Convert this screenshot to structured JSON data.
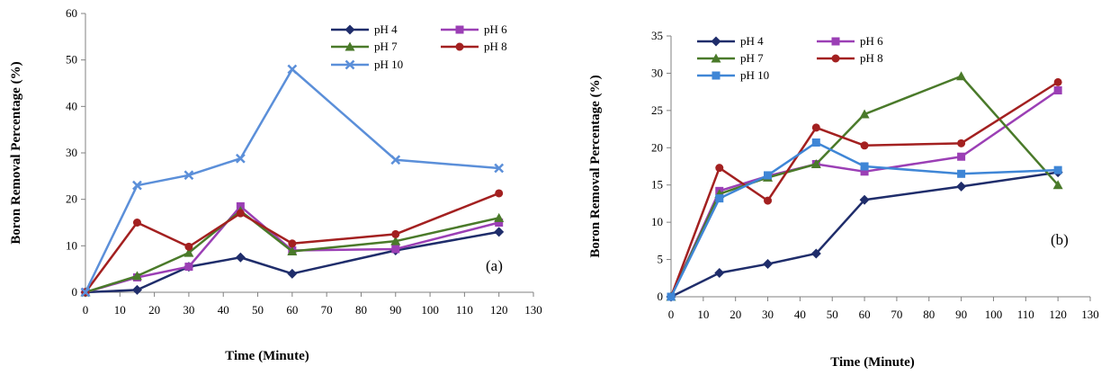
{
  "chart_data": [
    {
      "type": "line",
      "panel_label": "(a)",
      "xlabel": "Time (Minute)",
      "ylabel": "Boron Removal Percentage (%)",
      "xlim": [
        0,
        130
      ],
      "ylim": [
        0,
        60
      ],
      "xticks": [
        0,
        10,
        20,
        30,
        40,
        50,
        60,
        70,
        80,
        90,
        100,
        110,
        120,
        130
      ],
      "yticks": [
        0,
        10,
        20,
        30,
        40,
        50,
        60
      ],
      "grid": false,
      "legend_position": "top-right",
      "x": [
        0,
        15,
        30,
        45,
        60,
        90,
        120
      ],
      "series": [
        {
          "name": "pH 4",
          "color": "#1f2d6b",
          "marker": "diamond",
          "values": [
            0,
            0.5,
            5.5,
            7.5,
            4,
            9,
            13
          ]
        },
        {
          "name": "pH 6",
          "color": "#9b3fb5",
          "marker": "square",
          "values": [
            0,
            3.2,
            5.5,
            18.5,
            9,
            9.3,
            15
          ]
        },
        {
          "name": "pH 7",
          "color": "#4a7a2a",
          "marker": "triangle",
          "values": [
            0,
            3.5,
            8.5,
            17.5,
            8.8,
            11,
            16
          ]
        },
        {
          "name": "pH 8",
          "color": "#a32020",
          "marker": "circle",
          "values": [
            0,
            15,
            9.8,
            17,
            10.5,
            12.5,
            21.3
          ]
        },
        {
          "name": "pH 10",
          "color": "#5b8fd9",
          "marker": "x",
          "values": [
            0,
            23,
            25.2,
            28.8,
            48,
            28.5,
            26.7
          ]
        }
      ]
    },
    {
      "type": "line",
      "panel_label": "(b)",
      "xlabel": "Time (Minute)",
      "ylabel": "Boron Removal Percentage (%)",
      "xlim": [
        0,
        130
      ],
      "ylim": [
        0,
        35
      ],
      "xticks": [
        0,
        10,
        20,
        30,
        40,
        50,
        60,
        70,
        80,
        90,
        100,
        110,
        120,
        130
      ],
      "yticks": [
        0,
        5,
        10,
        15,
        20,
        25,
        30,
        35
      ],
      "grid": false,
      "legend_position": "top-left",
      "x": [
        0,
        15,
        30,
        45,
        60,
        90,
        120
      ],
      "series": [
        {
          "name": "pH 4",
          "color": "#1f2d6b",
          "marker": "diamond",
          "values": [
            0,
            3.2,
            4.4,
            5.8,
            13,
            14.8,
            16.7
          ]
        },
        {
          "name": "pH 6",
          "color": "#9b3fb5",
          "marker": "square",
          "values": [
            0,
            14.2,
            16.2,
            17.8,
            16.8,
            18.8,
            27.7
          ]
        },
        {
          "name": "pH 7",
          "color": "#4a7a2a",
          "marker": "triangle",
          "values": [
            0,
            13.8,
            16,
            17.8,
            24.5,
            29.6,
            15
          ]
        },
        {
          "name": "pH 8",
          "color": "#a32020",
          "marker": "circle",
          "values": [
            0,
            17.3,
            12.9,
            22.7,
            20.3,
            20.6,
            28.8
          ]
        },
        {
          "name": "pH 10",
          "color": "#3f86d6",
          "marker": "square",
          "values": [
            0,
            13.2,
            16.3,
            20.7,
            17.5,
            16.5,
            17
          ]
        }
      ]
    }
  ]
}
